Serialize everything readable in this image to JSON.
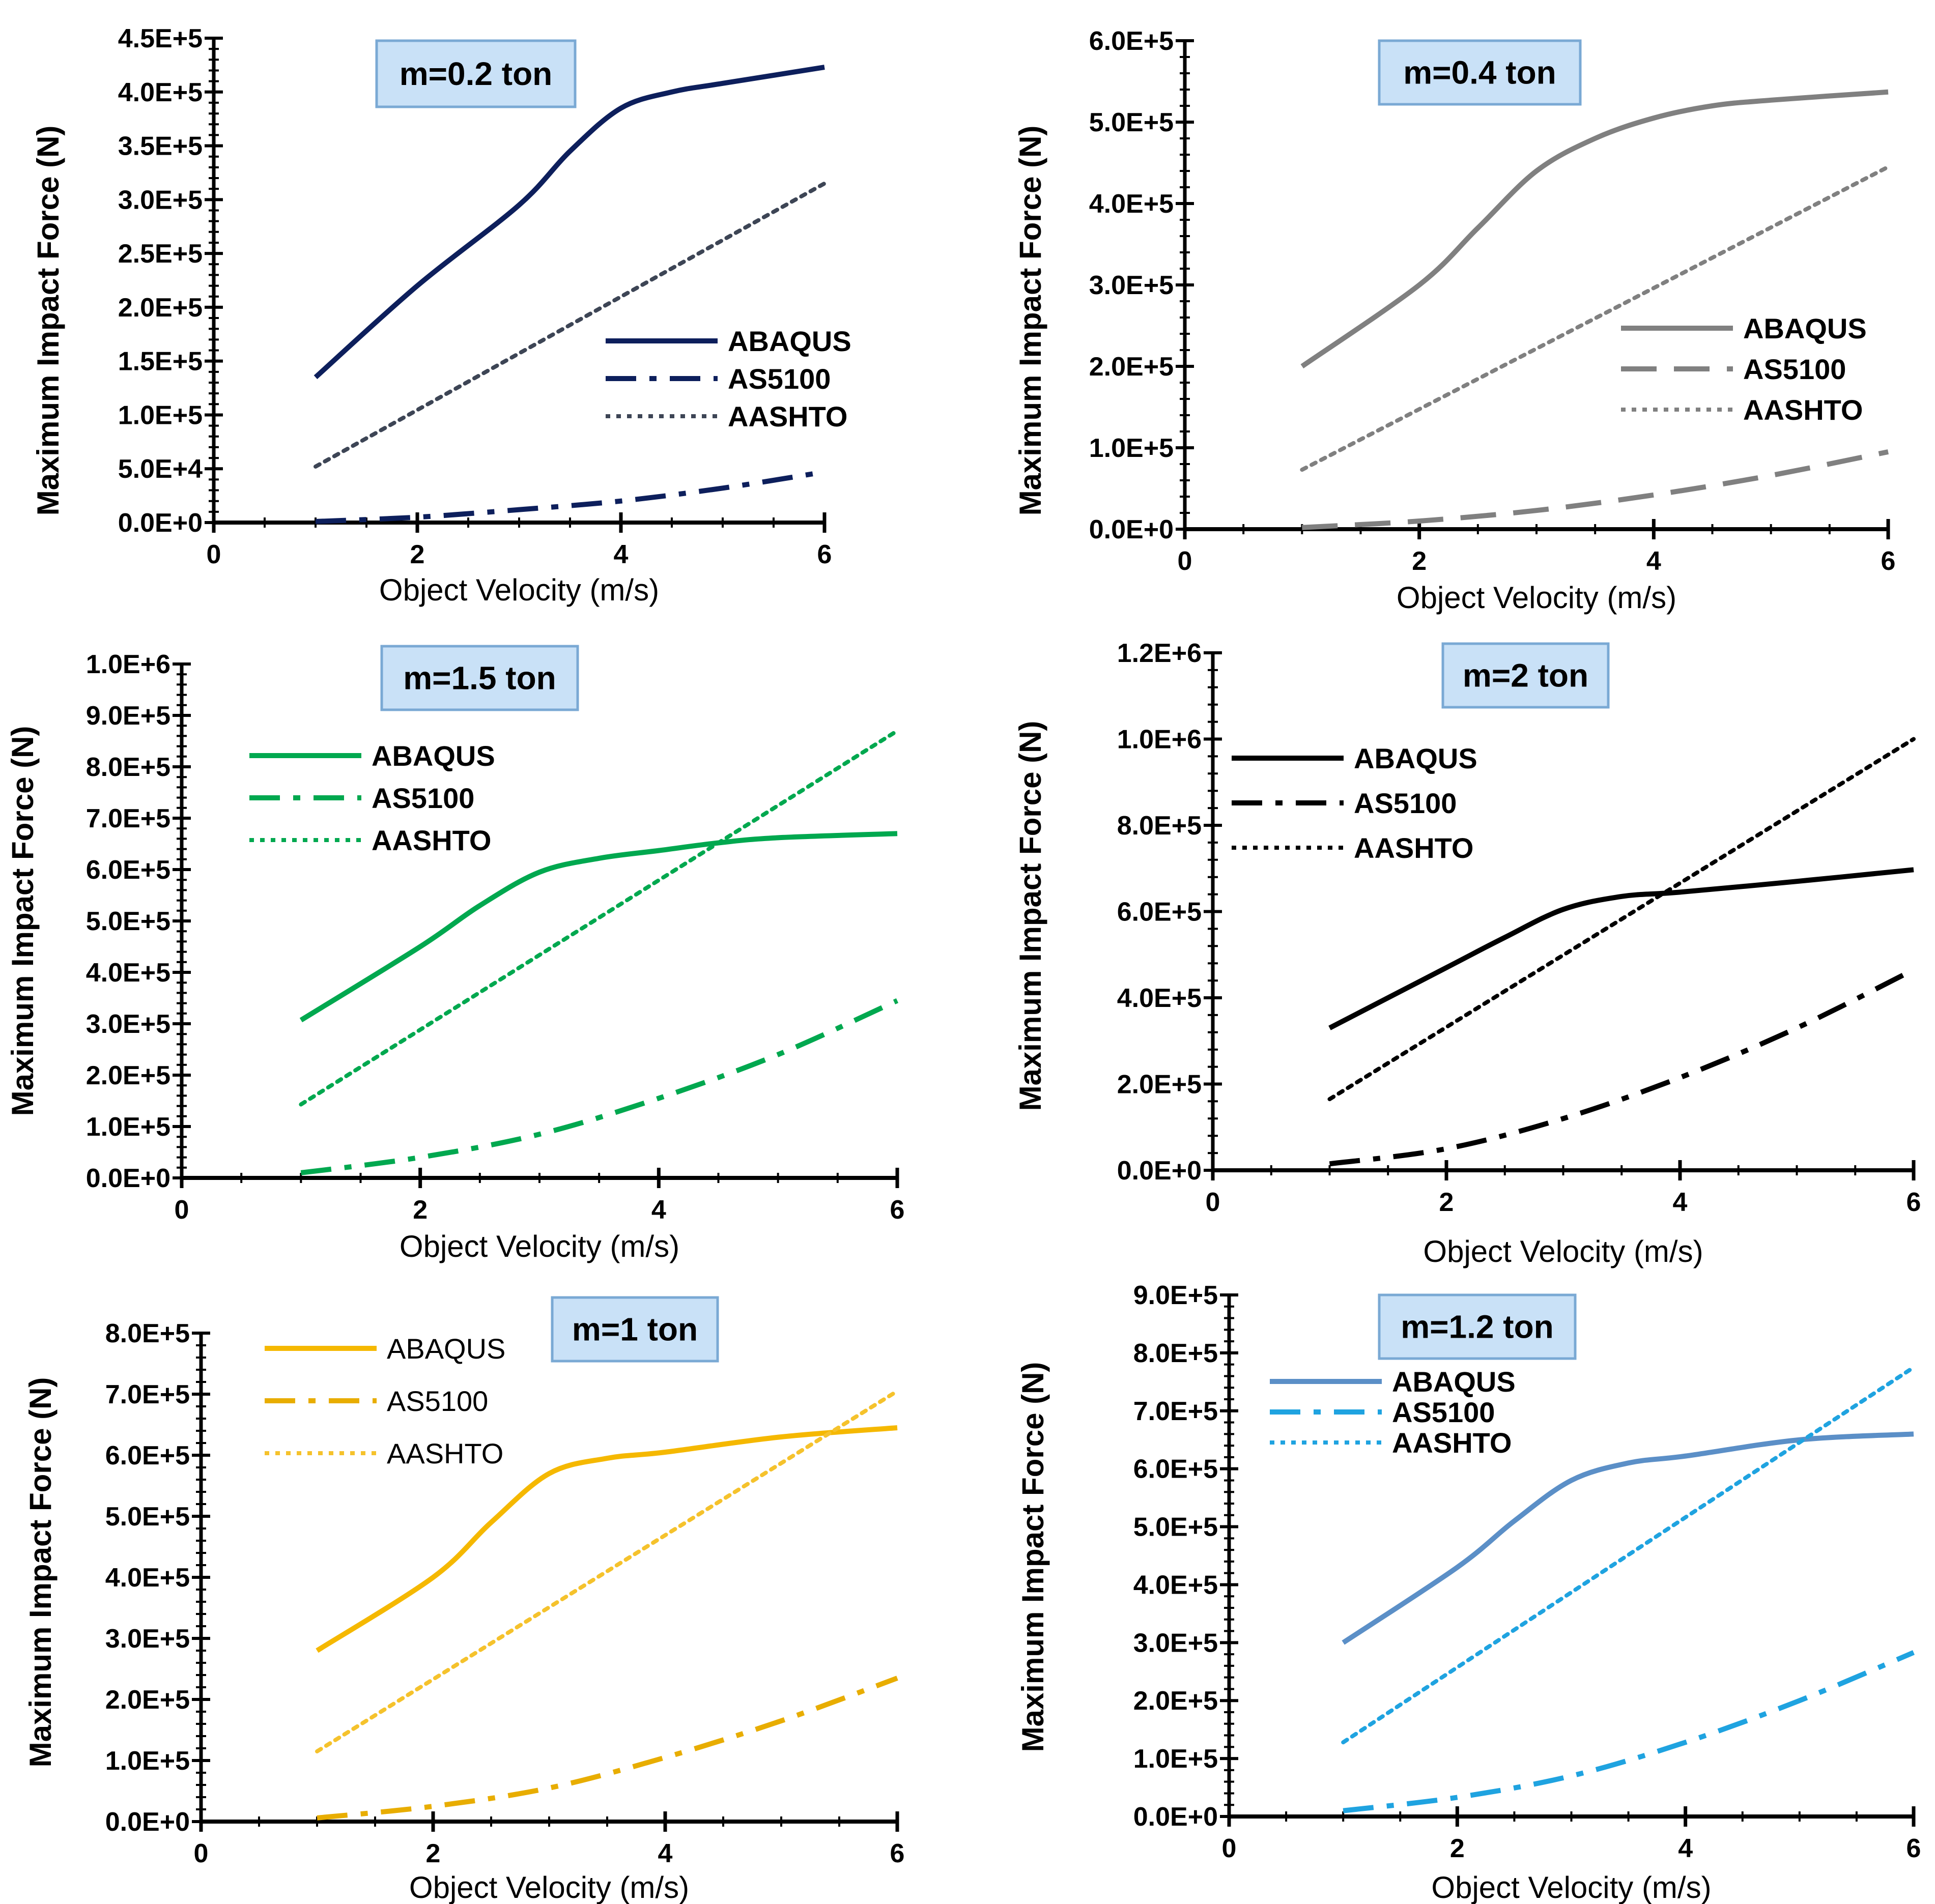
{
  "chart_data": [
    {
      "type": "line",
      "title": "m=0.2 ton",
      "xlabel": "Object Velocity (m/s)",
      "ylabel": "Maximum Impact Force (N)",
      "xlim": [
        0,
        6
      ],
      "ylim": [
        0,
        450000
      ],
      "xticks": [
        "0",
        "2",
        "4",
        "6"
      ],
      "yticks": [
        "0.0E+0",
        "5.0E+4",
        "1.0E+5",
        "1.5E+5",
        "2.0E+5",
        "2.5E+5",
        "3.0E+5",
        "3.5E+5",
        "4.0E+5",
        "4.5E+5"
      ],
      "legend_pos": "right",
      "series": [
        {
          "name": "ABAQUS",
          "style": "solid",
          "x": [
            1,
            2,
            3,
            3.5,
            4,
            4.5,
            5,
            6
          ],
          "values": [
            135000,
            220000,
            295000,
            345000,
            385000,
            400000,
            408000,
            423000
          ]
        },
        {
          "name": "AS5100",
          "style": "dashdot",
          "x": [
            1,
            2,
            3,
            4,
            5,
            6
          ],
          "values": [
            1000,
            5000,
            12000,
            20000,
            32000,
            47000
          ]
        },
        {
          "name": "AASHTO",
          "style": "dotted",
          "x": [
            1,
            6
          ],
          "values": [
            52000,
            315000
          ]
        }
      ],
      "colors": [
        "#0d1f5c",
        "#0d1f5c",
        "#3d4555"
      ]
    },
    {
      "type": "line",
      "title": "m=0.4 ton",
      "xlabel": "Object Velocity (m/s)",
      "ylabel": "Maximum Impact Force (N)",
      "xlim": [
        0,
        6
      ],
      "ylim": [
        0,
        600000
      ],
      "xticks": [
        "0",
        "2",
        "4",
        "6"
      ],
      "yticks": [
        "0.0E+0",
        "1.0E+5",
        "2.0E+5",
        "3.0E+5",
        "4.0E+5",
        "5.0E+5",
        "6.0E+5"
      ],
      "legend_pos": "right",
      "series": [
        {
          "name": "ABAQUS",
          "style": "solid",
          "x": [
            1,
            2,
            2.5,
            3,
            3.5,
            4,
            4.5,
            5,
            6
          ],
          "values": [
            200000,
            300000,
            370000,
            440000,
            480000,
            505000,
            520000,
            527000,
            537000
          ]
        },
        {
          "name": "AS5100",
          "style": "dashed",
          "x": [
            1,
            2,
            3,
            4,
            5,
            6
          ],
          "values": [
            2000,
            10000,
            23000,
            42000,
            66000,
            95000
          ]
        },
        {
          "name": "AASHTO",
          "style": "dotted",
          "x": [
            1,
            6
          ],
          "values": [
            73000,
            445000
          ]
        }
      ],
      "colors": [
        "#808080",
        "#808080",
        "#808080"
      ]
    },
    {
      "type": "line",
      "title": "m=1.5 ton",
      "xlabel": "Object Velocity (m/s)",
      "ylabel": "Maximum Impact Force (N)",
      "xlim": [
        0,
        6
      ],
      "ylim": [
        0,
        1000000
      ],
      "xticks": [
        "0",
        "2",
        "4",
        "6"
      ],
      "yticks": [
        "0.0E+0",
        "1.0E+5",
        "2.0E+5",
        "3.0E+5",
        "4.0E+5",
        "5.0E+5",
        "6.0E+5",
        "7.0E+5",
        "8.0E+5",
        "9.0E+5",
        "1.0E+6"
      ],
      "legend_pos": "top-left",
      "series": [
        {
          "name": "ABAQUS",
          "style": "solid",
          "x": [
            1,
            2,
            2.5,
            3,
            3.5,
            4,
            4.5,
            5,
            6
          ],
          "values": [
            307000,
            450000,
            530000,
            595000,
            622000,
            637000,
            652000,
            662000,
            670000
          ]
        },
        {
          "name": "AS5100",
          "style": "dashdot",
          "x": [
            1,
            2,
            3,
            4,
            5,
            6
          ],
          "values": [
            10000,
            40000,
            85000,
            155000,
            240000,
            345000
          ]
        },
        {
          "name": "AASHTO",
          "style": "dotted",
          "x": [
            1,
            6
          ],
          "values": [
            143000,
            870000
          ]
        }
      ],
      "colors": [
        "#00a84f",
        "#00a84f",
        "#00a84f"
      ]
    },
    {
      "type": "line",
      "title": "m=2 ton",
      "xlabel": "Object Velocity (m/s)",
      "ylabel": "Maximum Impact Force (N)",
      "xlim": [
        0,
        6
      ],
      "ylim": [
        0,
        1200000
      ],
      "xticks": [
        "0",
        "2",
        "4",
        "6"
      ],
      "yticks": [
        "0.0E+0",
        "2.0E+5",
        "4.0E+5",
        "6.0E+5",
        "8.0E+5",
        "1.0E+6",
        "1.2E+6"
      ],
      "legend_pos": "top-left",
      "series": [
        {
          "name": "ABAQUS",
          "style": "solid",
          "x": [
            1,
            2,
            2.5,
            3,
            3.5,
            4,
            5,
            6
          ],
          "values": [
            330000,
            470000,
            540000,
            605000,
            635000,
            645000,
            670000,
            697000
          ]
        },
        {
          "name": "AS5100",
          "style": "dashdot",
          "x": [
            1,
            2,
            3,
            4,
            5,
            6
          ],
          "values": [
            15000,
            50000,
            120000,
            215000,
            330000,
            465000
          ]
        },
        {
          "name": "AASHTO",
          "style": "dotted",
          "x": [
            1,
            6
          ],
          "values": [
            165000,
            1000000
          ]
        }
      ],
      "colors": [
        "#000000",
        "#000000",
        "#000000"
      ]
    },
    {
      "type": "line",
      "title": "m=1 ton",
      "xlabel": "Object Velocity (m/s)",
      "ylabel": "Maximum Impact Force (N)",
      "xlim": [
        0,
        6
      ],
      "ylim": [
        0,
        800000
      ],
      "xticks": [
        "0",
        "2",
        "4",
        "6"
      ],
      "yticks": [
        "0.0E+0",
        "1.0E+5",
        "2.0E+5",
        "3.0E+5",
        "4.0E+5",
        "5.0E+5",
        "6.0E+5",
        "7.0E+5",
        "8.0E+5"
      ],
      "legend_pos": "top-left",
      "series": [
        {
          "name": "ABAQUS",
          "style": "solid",
          "x": [
            1,
            2,
            2.5,
            3,
            3.5,
            4,
            5,
            6
          ],
          "values": [
            280000,
            400000,
            490000,
            570000,
            595000,
            605000,
            630000,
            645000
          ]
        },
        {
          "name": "AS5100",
          "style": "dashdot",
          "x": [
            1,
            2,
            3,
            4,
            5,
            6
          ],
          "values": [
            6000,
            25000,
            55000,
            105000,
            165000,
            235000
          ]
        },
        {
          "name": "AASHTO",
          "style": "dotted",
          "x": [
            1,
            6
          ],
          "values": [
            115000,
            705000
          ]
        }
      ],
      "colors": [
        "#f5b800",
        "#e8ad00",
        "#f5c22c"
      ]
    },
    {
      "type": "line",
      "title": "m=1.2 ton",
      "xlabel": "Object Velocity (m/s)",
      "ylabel": "Maximum Impact Force (N)",
      "xlim": [
        0,
        6
      ],
      "ylim": [
        0,
        900000
      ],
      "xticks": [
        "0",
        "2",
        "4",
        "6"
      ],
      "yticks": [
        "0.0E+0",
        "1.0E+5",
        "2.0E+5",
        "3.0E+5",
        "4.0E+5",
        "5.0E+5",
        "6.0E+5",
        "7.0E+5",
        "8.0E+5",
        "9.0E+5"
      ],
      "legend_pos": "top-left",
      "series": [
        {
          "name": "ABAQUS",
          "style": "solid",
          "x": [
            1,
            2,
            2.5,
            3,
            3.5,
            4,
            5,
            6
          ],
          "values": [
            300000,
            430000,
            510000,
            580000,
            610000,
            622000,
            650000,
            660000
          ]
        },
        {
          "name": "AS5100",
          "style": "dashdot",
          "x": [
            1,
            2,
            3,
            4,
            5,
            6
          ],
          "values": [
            10000,
            33000,
            70000,
            128000,
            200000,
            283000
          ]
        },
        {
          "name": "AASHTO",
          "style": "dotted",
          "x": [
            1,
            6
          ],
          "values": [
            128000,
            775000
          ]
        }
      ],
      "colors": [
        "#5b8fc7",
        "#1fa3e0",
        "#1fa3e0"
      ]
    }
  ]
}
